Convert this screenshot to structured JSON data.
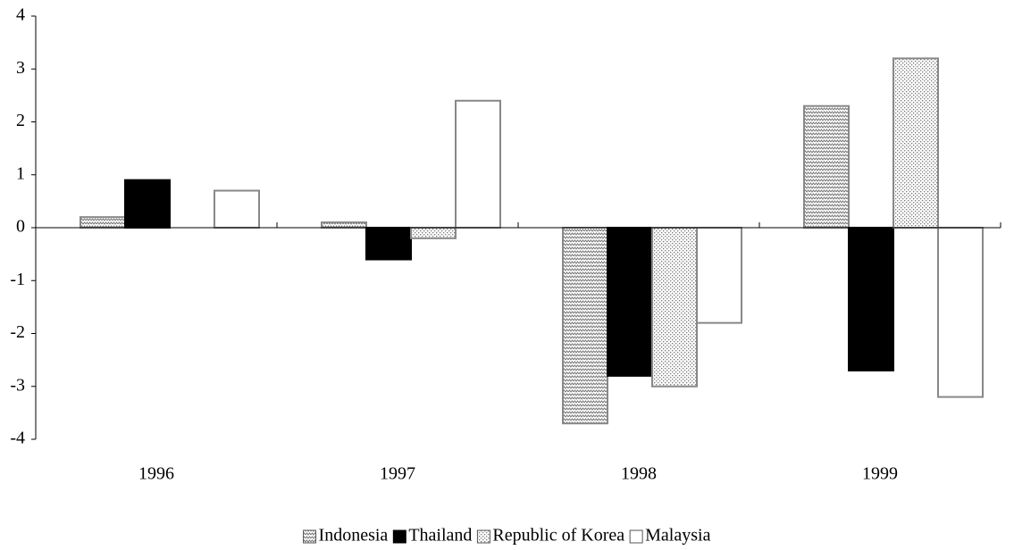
{
  "chart_data": {
    "type": "bar",
    "categories": [
      "1996",
      "1997",
      "1998",
      "1999"
    ],
    "series": [
      {
        "name": "Indonesia",
        "color": "#888888",
        "pattern": "zigzag",
        "values": [
          0.2,
          0.1,
          -3.7,
          2.3
        ]
      },
      {
        "name": "Thailand",
        "color": "#000000",
        "pattern": "solid",
        "values": [
          0.9,
          -0.6,
          -2.8,
          -2.7
        ]
      },
      {
        "name": "Republic of Korea",
        "color": "#888888",
        "pattern": "dots",
        "values": [
          0,
          -0.2,
          -3.0,
          3.2
        ]
      },
      {
        "name": "Malaysia",
        "color": "#888888",
        "pattern": "none",
        "values": [
          0.7,
          2.4,
          -1.8,
          -3.2
        ]
      }
    ],
    "ylim": [
      -4,
      4
    ],
    "yticks": [
      -4,
      -3,
      -2,
      -1,
      0,
      1,
      2,
      3,
      4
    ],
    "grid": false,
    "legend": "bottom"
  }
}
